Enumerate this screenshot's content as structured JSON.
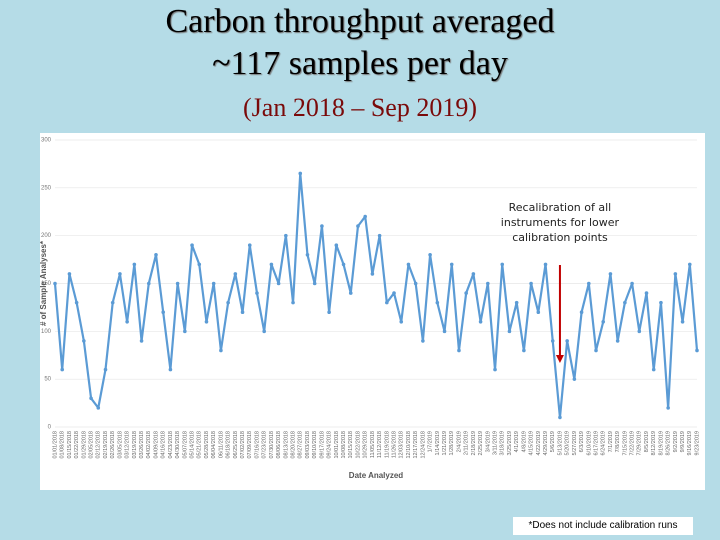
{
  "chart_data": {
    "type": "line",
    "title_lines": [
      "Carbon throughput averaged",
      "~117 samples per day"
    ],
    "subtitle": "(Jan 2018 – Sep 2019)",
    "x_label": "Date Analyzed",
    "y_label": "# of Sample Analyses*",
    "annotation": "Recalibration of all instruments for lower calibration points",
    "footnote": "*Does not include calibration runs",
    "categories": [
      "01/01/2018",
      "01/08/2018",
      "01/15/2018",
      "01/22/2018",
      "01/29/2018",
      "02/05/2018",
      "02/12/2018",
      "02/19/2018",
      "02/26/2018",
      "03/05/2018",
      "03/12/2018",
      "03/19/2018",
      "03/26/2018",
      "04/02/2018",
      "04/09/2018",
      "04/16/2018",
      "04/23/2018",
      "04/30/2018",
      "05/07/2018",
      "05/14/2018",
      "05/21/2018",
      "05/28/2018",
      "06/04/2018",
      "06/11/2018",
      "06/18/2018",
      "06/25/2018",
      "07/02/2018",
      "07/09/2018",
      "07/16/2018",
      "07/23/2018",
      "07/30/2018",
      "08/06/2018",
      "08/13/2018",
      "08/20/2018",
      "08/27/2018",
      "09/03/2018",
      "09/10/2018",
      "09/17/2018",
      "09/24/2018",
      "10/01/2018",
      "10/08/2018",
      "10/15/2018",
      "10/22/2018",
      "10/29/2018",
      "11/05/2018",
      "11/12/2018",
      "11/19/2018",
      "11/26/2018",
      "12/03/2018",
      "12/10/2018",
      "12/17/2018",
      "12/24/2018",
      "1/7/2019",
      "1/14/2019",
      "1/21/2019",
      "1/28/2019",
      "2/4/2019",
      "2/11/2019",
      "2/18/2019",
      "2/25/2019",
      "3/4/2019",
      "3/11/2019",
      "3/18/2019",
      "3/25/2019",
      "4/1/2019",
      "4/8/2019",
      "4/15/2019",
      "4/22/2019",
      "4/29/2019",
      "5/6/2019",
      "5/13/2019",
      "5/20/2019",
      "5/27/2019",
      "6/3/2019",
      "6/10/2019",
      "6/17/2019",
      "6/24/2019",
      "7/1/2019",
      "7/8/2019",
      "7/15/2019",
      "7/22/2019",
      "7/29/2019",
      "8/5/2019",
      "8/12/2019",
      "8/19/2019",
      "8/26/2019",
      "9/2/2019",
      "9/9/2019",
      "9/16/2019",
      "9/23/2019"
    ],
    "values": [
      150,
      60,
      160,
      130,
      90,
      30,
      20,
      60,
      130,
      160,
      110,
      170,
      90,
      150,
      180,
      120,
      60,
      150,
      100,
      190,
      170,
      110,
      150,
      80,
      130,
      160,
      120,
      190,
      140,
      100,
      170,
      150,
      200,
      130,
      265,
      180,
      150,
      210,
      120,
      190,
      170,
      140,
      210,
      220,
      160,
      200,
      130,
      140,
      110,
      170,
      150,
      90,
      180,
      130,
      100,
      170,
      80,
      140,
      160,
      110,
      150,
      60,
      170,
      100,
      130,
      80,
      150,
      120,
      170,
      90,
      10,
      90,
      50,
      120,
      150,
      80,
      110,
      160,
      90,
      130,
      150,
      100,
      140,
      60,
      130,
      20,
      160,
      110,
      170,
      80
    ],
    "color": "#5b9bd5",
    "annotation_index": 70,
    "arrow_color": "#c00000",
    "ylim": [
      0,
      300
    ],
    "yticks": [
      0,
      50,
      100,
      150,
      200,
      250,
      300
    ],
    "grid": true
  }
}
